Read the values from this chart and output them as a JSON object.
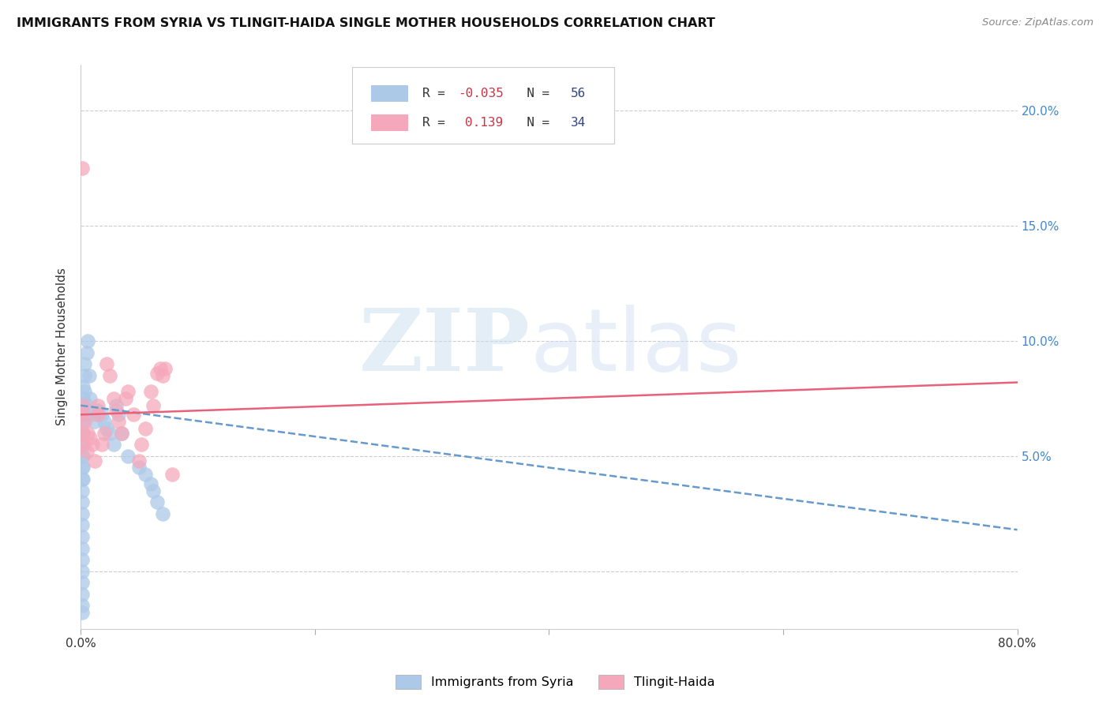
{
  "title": "IMMIGRANTS FROM SYRIA VS TLINGIT-HAIDA SINGLE MOTHER HOUSEHOLDS CORRELATION CHART",
  "source": "Source: ZipAtlas.com",
  "ylabel": "Single Mother Households",
  "xlim": [
    0,
    0.8
  ],
  "ylim": [
    -0.025,
    0.22
  ],
  "yticks": [
    0.0,
    0.05,
    0.1,
    0.15,
    0.2
  ],
  "ytick_labels_right": [
    "",
    "5.0%",
    "10.0%",
    "15.0%",
    "20.0%"
  ],
  "xticks": [
    0.0,
    0.2,
    0.4,
    0.6,
    0.8
  ],
  "xtick_labels": [
    "0.0%",
    "",
    "",
    "",
    "80.0%"
  ],
  "blue_color": "#adc9e8",
  "pink_color": "#f5a8bb",
  "blue_line_color": "#6699cc",
  "pink_line_color": "#e8607a",
  "blue_R": "-0.035",
  "blue_N": "56",
  "pink_R": "0.139",
  "pink_N": "34",
  "blue_line_y_start": 0.072,
  "blue_line_y_end": 0.018,
  "pink_line_y_start": 0.068,
  "pink_line_y_end": 0.082,
  "blue_scatter_x": [
    0.001,
    0.001,
    0.001,
    0.001,
    0.001,
    0.001,
    0.001,
    0.001,
    0.001,
    0.001,
    0.001,
    0.001,
    0.001,
    0.001,
    0.001,
    0.001,
    0.001,
    0.001,
    0.001,
    0.001,
    0.002,
    0.002,
    0.002,
    0.002,
    0.002,
    0.002,
    0.002,
    0.002,
    0.002,
    0.003,
    0.003,
    0.003,
    0.003,
    0.004,
    0.005,
    0.006,
    0.007,
    0.008,
    0.01,
    0.012,
    0.015,
    0.018,
    0.02,
    0.022,
    0.025,
    0.028,
    0.03,
    0.032,
    0.035,
    0.04,
    0.05,
    0.055,
    0.06,
    0.062,
    0.065,
    0.07
  ],
  "blue_scatter_y": [
    0.072,
    0.068,
    0.065,
    0.06,
    0.055,
    0.05,
    0.045,
    0.04,
    0.035,
    0.03,
    0.025,
    0.02,
    0.015,
    0.01,
    0.005,
    0.0,
    -0.005,
    -0.01,
    -0.015,
    -0.018,
    0.08,
    0.075,
    0.07,
    0.065,
    0.06,
    0.055,
    0.05,
    0.045,
    0.04,
    0.09,
    0.085,
    0.078,
    0.068,
    0.073,
    0.095,
    0.1,
    0.085,
    0.075,
    0.068,
    0.065,
    0.07,
    0.068,
    0.065,
    0.062,
    0.06,
    0.055,
    0.072,
    0.068,
    0.06,
    0.05,
    0.045,
    0.042,
    0.038,
    0.035,
    0.03,
    0.025
  ],
  "pink_scatter_x": [
    0.001,
    0.001,
    0.001,
    0.002,
    0.002,
    0.003,
    0.005,
    0.006,
    0.008,
    0.01,
    0.012,
    0.015,
    0.015,
    0.018,
    0.02,
    0.022,
    0.025,
    0.028,
    0.03,
    0.032,
    0.035,
    0.038,
    0.04,
    0.045,
    0.05,
    0.052,
    0.055,
    0.06,
    0.062,
    0.065,
    0.068,
    0.07,
    0.072,
    0.078
  ],
  "pink_scatter_y": [
    0.175,
    0.068,
    0.055,
    0.072,
    0.06,
    0.065,
    0.052,
    0.06,
    0.058,
    0.055,
    0.048,
    0.072,
    0.068,
    0.055,
    0.06,
    0.09,
    0.085,
    0.075,
    0.07,
    0.065,
    0.06,
    0.075,
    0.078,
    0.068,
    0.048,
    0.055,
    0.062,
    0.078,
    0.072,
    0.086,
    0.088,
    0.085,
    0.088,
    0.042
  ]
}
